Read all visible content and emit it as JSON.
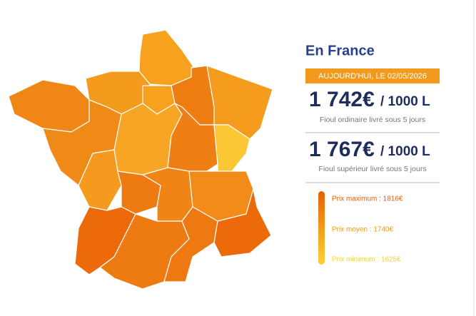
{
  "header": {
    "title": "En France",
    "date_badge": "AUJOURD'HUI, LE 02/05/2026"
  },
  "prices": [
    {
      "price": "1 742€",
      "unit": "/ 1000 L",
      "description": "Fioul ordinaire livré sous 5 jours"
    },
    {
      "price": "1 767€",
      "unit": "/ 1000 L",
      "description": "Fioul supérieur livré sous 5 jours"
    }
  ],
  "legend": [
    {
      "label": "Prix maximum : 1816€",
      "color": "#e8600a"
    },
    {
      "label": "Prix moyen : 1740€",
      "color": "#f29a1b"
    },
    {
      "label": "Prix minimum : 1625€",
      "color": "#fcd23a"
    }
  ]
}
